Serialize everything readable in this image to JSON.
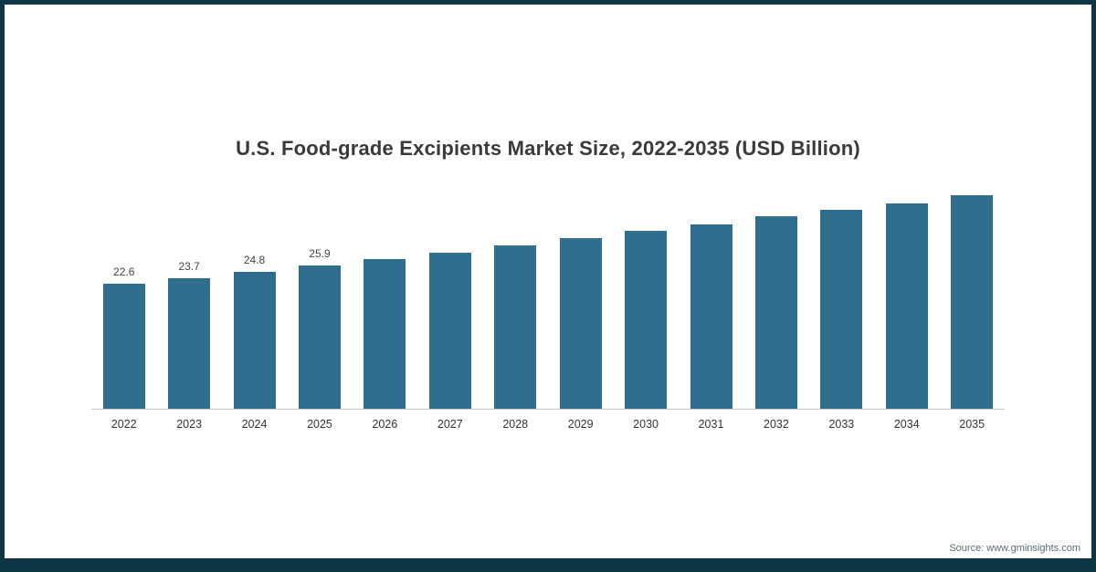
{
  "chart_data": {
    "type": "bar",
    "title": "U.S. Food-grade Excipients Market Size, 2022-2035 (USD Billion)",
    "categories": [
      "2022",
      "2023",
      "2024",
      "2025",
      "2026",
      "2027",
      "2028",
      "2029",
      "2030",
      "2031",
      "2032",
      "2033",
      "2034",
      "2035"
    ],
    "values": [
      22.6,
      23.7,
      24.8,
      25.9,
      27.1,
      28.3,
      29.6,
      30.9,
      32.2,
      33.4,
      34.8,
      36.0,
      37.2,
      38.6
    ],
    "data_labels": [
      "22.6",
      "23.7",
      "24.8",
      "25.9",
      "",
      "",
      "",
      "",
      "",
      "",
      "",
      "",
      "",
      ""
    ],
    "xlabel": "",
    "ylabel": "",
    "ylim": [
      0,
      40
    ],
    "grid": false,
    "legend": null,
    "bar_color": "#306e8d",
    "axis_line_color": "#c9c9c9"
  },
  "footer": {
    "source_label": "Source: www.gminsights.com"
  },
  "frame": {
    "border_color": "#0e3746",
    "background_color": "#ffffff"
  }
}
